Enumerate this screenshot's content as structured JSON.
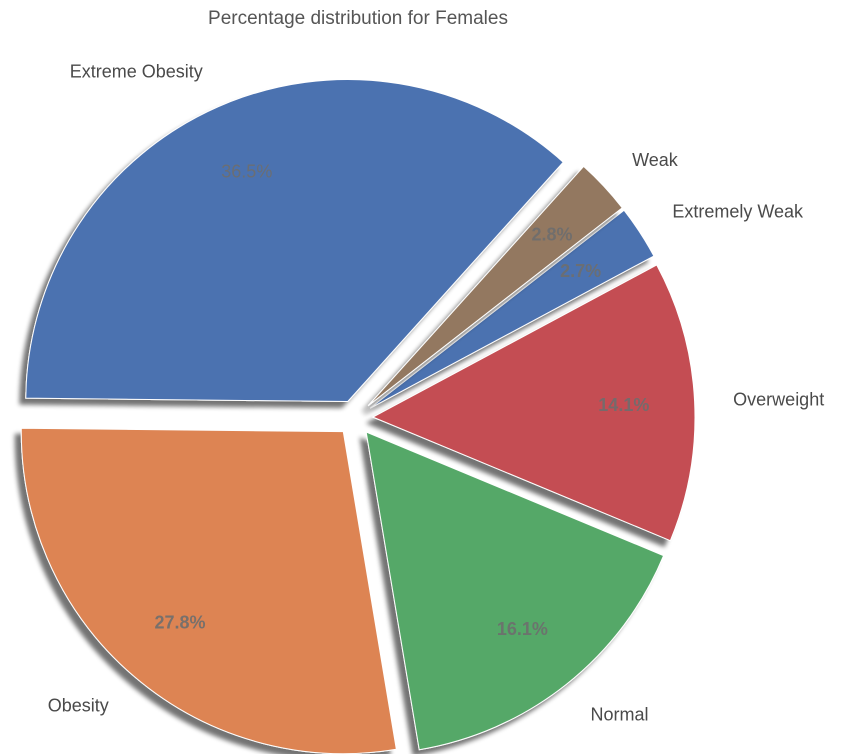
{
  "chart_data": {
    "type": "pie",
    "title": "Percentage distribution for Females",
    "slices": [
      {
        "label": "Extreme Obesity",
        "value": 36.5,
        "pct_label": "36.5%",
        "color": "#4c72b0",
        "exploded": true
      },
      {
        "label": "Obesity",
        "value": 27.8,
        "pct_label": "27.8%",
        "color": "#dd8452",
        "exploded": true
      },
      {
        "label": "Normal",
        "value": 16.1,
        "pct_label": "16.1%",
        "color": "#55a868",
        "exploded": true
      },
      {
        "label": "Overweight",
        "value": 14.1,
        "pct_label": "14.1%",
        "color": "#c44e52",
        "exploded": true
      },
      {
        "label": "Extremely Weak",
        "value": 2.7,
        "pct_label": "2.7%",
        "color": "#4c72b0",
        "exploded": true
      },
      {
        "label": "Weak",
        "value": 2.8,
        "pct_label": "2.8%",
        "color": "#937860",
        "exploded": true
      }
    ],
    "start_angle_deg": 48,
    "direction": "counterclockwise",
    "shadow": true,
    "legend": "none"
  }
}
